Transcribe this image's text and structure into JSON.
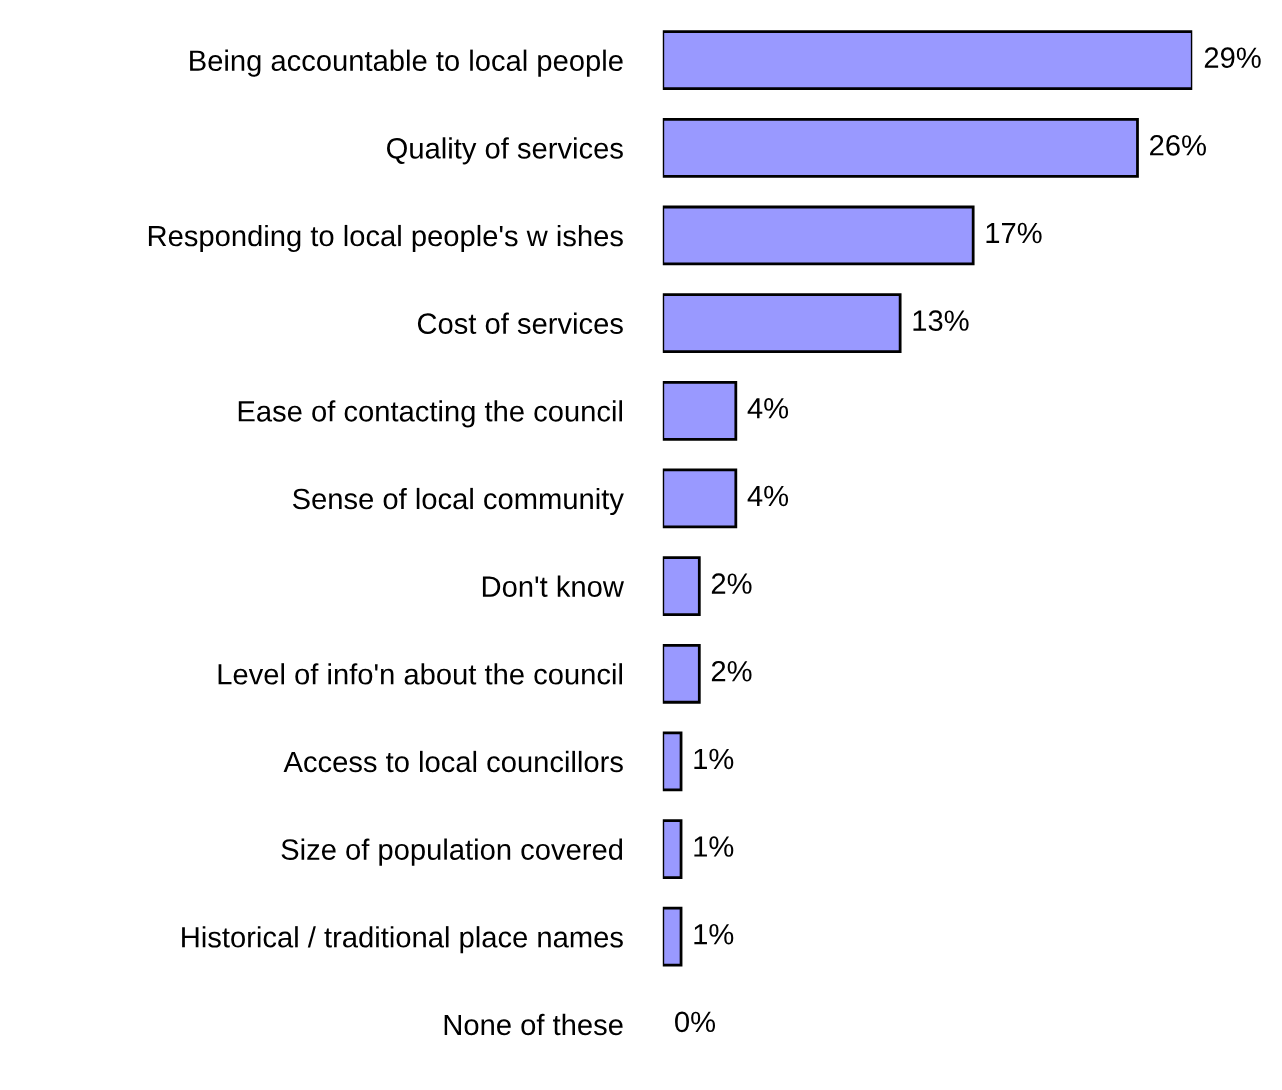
{
  "chart_data": {
    "type": "bar",
    "orientation": "horizontal",
    "categories": [
      "Being accountable to local people",
      "Quality of services",
      "Responding to local people's w ishes",
      "Cost of services",
      "Ease of contacting the council",
      "Sense of local community",
      "Don't know",
      "Level of info'n about the council",
      "Access to local councillors",
      "Size of population covered",
      "Historical / traditional place names",
      "None of these"
    ],
    "values": [
      29,
      26,
      17,
      13,
      4,
      4,
      2,
      2,
      1,
      1,
      1,
      0
    ],
    "value_labels": [
      "29%",
      "26%",
      "17%",
      "13%",
      "4%",
      "4%",
      "2%",
      "2%",
      "1%",
      "1%",
      "1%",
      "0%"
    ],
    "color": "#9999ff",
    "grid": false,
    "legend": false
  }
}
